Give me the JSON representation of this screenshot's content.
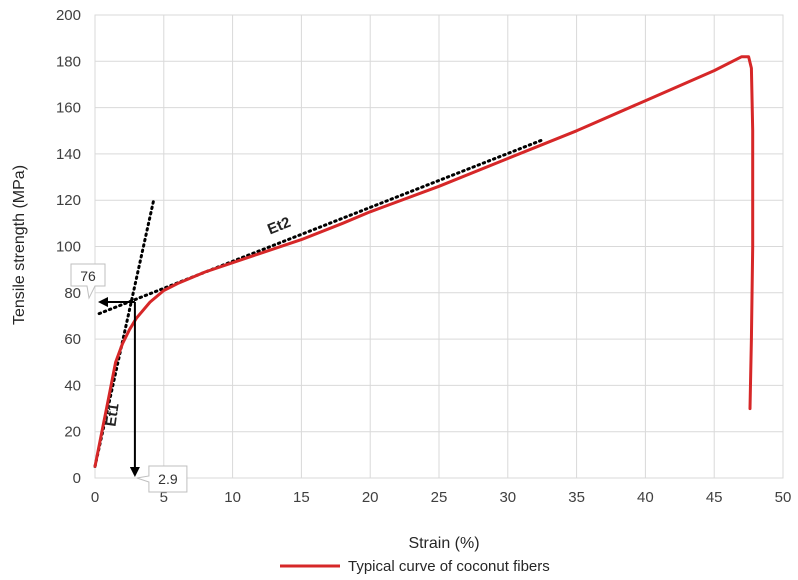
{
  "chart_data": {
    "type": "line",
    "xlabel": "Strain (%)",
    "ylabel": "Tensile strength (MPa)",
    "xlim": [
      0,
      50
    ],
    "ylim": [
      0,
      200
    ],
    "x_ticks": [
      0,
      5,
      10,
      15,
      20,
      25,
      30,
      35,
      40,
      45,
      50
    ],
    "y_ticks": [
      0,
      20,
      40,
      60,
      80,
      100,
      120,
      140,
      160,
      180,
      200
    ],
    "grid": true,
    "legend_position": "bottom",
    "series": [
      {
        "name": "Typical curve of coconut fibers",
        "color": "#d62728",
        "points": [
          [
            0,
            5
          ],
          [
            0.5,
            20
          ],
          [
            1,
            35
          ],
          [
            1.5,
            50
          ],
          [
            2,
            58
          ],
          [
            2.5,
            64
          ],
          [
            3,
            69
          ],
          [
            4,
            76
          ],
          [
            5,
            81
          ],
          [
            6,
            84
          ],
          [
            8,
            89
          ],
          [
            10,
            93
          ],
          [
            12,
            97
          ],
          [
            15,
            103
          ],
          [
            18,
            110
          ],
          [
            20,
            115
          ],
          [
            25,
            126
          ],
          [
            30,
            138
          ],
          [
            35,
            150
          ],
          [
            40,
            163
          ],
          [
            45,
            176
          ],
          [
            47,
            182
          ],
          [
            47.5,
            182
          ],
          [
            47.7,
            177
          ],
          [
            47.8,
            150
          ],
          [
            47.8,
            100
          ],
          [
            47.7,
            60
          ],
          [
            47.6,
            30
          ]
        ]
      }
    ],
    "tangent_lines": [
      {
        "label": "Et1",
        "points": [
          [
            0,
            5
          ],
          [
            4.3,
            121
          ]
        ]
      },
      {
        "label": "Et2",
        "points": [
          [
            0.3,
            71
          ],
          [
            32.5,
            146
          ]
        ]
      }
    ],
    "annotations": [
      {
        "text": "76",
        "x": 2.9,
        "y": 76,
        "direction": "to-y-axis"
      },
      {
        "text": "2.9",
        "x": 2.9,
        "y": 76,
        "direction": "to-x-axis"
      }
    ]
  }
}
